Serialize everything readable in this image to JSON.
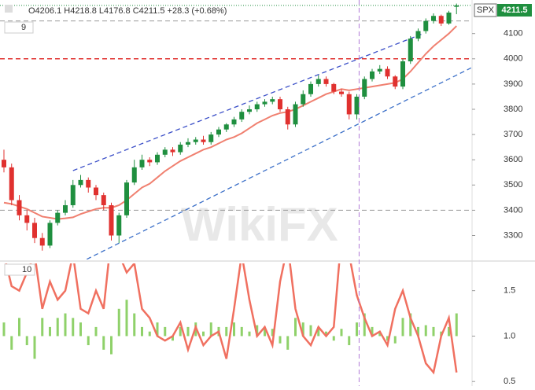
{
  "chart_data": {
    "type": "candlestick",
    "header": "O4206.1 H4218.8 L4176.8 C4211.5 +28.3 (+0.68%)",
    "symbol": "SPX",
    "watermark": "WikiFX",
    "up_color": "#1f8f3f",
    "down_color": "#e0312f",
    "open": [
      3600,
      3570,
      3440,
      3380,
      3350,
      3290,
      3260,
      3350,
      3390,
      3420,
      3500,
      3520,
      3490,
      3460,
      3420,
      3300,
      3380,
      3510,
      3570,
      3600,
      3590,
      3620,
      3640,
      3630,
      3660,
      3670,
      3680,
      3670,
      3700,
      3720,
      3740,
      3760,
      3790,
      3800,
      3820,
      3830,
      3840,
      3800,
      3740,
      3820,
      3860,
      3900,
      3920,
      3900,
      3870,
      3860,
      3780,
      3850,
      3920,
      3950,
      3960,
      3930,
      3890,
      3990,
      4080,
      4110,
      4150,
      4170,
      4140,
      4206.1
    ],
    "high": [
      3640,
      3585,
      3460,
      3400,
      3370,
      3310,
      3360,
      3400,
      3440,
      3520,
      3540,
      3530,
      3500,
      3470,
      3430,
      3390,
      3520,
      3600,
      3620,
      3610,
      3630,
      3650,
      3650,
      3670,
      3685,
      3690,
      3695,
      3710,
      3730,
      3745,
      3770,
      3800,
      3815,
      3830,
      3840,
      3850,
      3850,
      3810,
      3830,
      3875,
      3910,
      3935,
      3930,
      3905,
      3880,
      3870,
      3860,
      3930,
      3960,
      3975,
      3970,
      3935,
      4000,
      4090,
      4120,
      4160,
      4180,
      4175,
      4190,
      4218.8
    ],
    "low": [
      3550,
      3420,
      3360,
      3320,
      3270,
      3240,
      3250,
      3340,
      3380,
      3410,
      3490,
      3470,
      3440,
      3400,
      3280,
      3270,
      3370,
      3500,
      3560,
      3575,
      3580,
      3610,
      3615,
      3620,
      3650,
      3660,
      3660,
      3660,
      3690,
      3710,
      3730,
      3750,
      3780,
      3790,
      3810,
      3820,
      3790,
      3720,
      3730,
      3810,
      3850,
      3890,
      3890,
      3860,
      3850,
      3760,
      3760,
      3840,
      3910,
      3940,
      3920,
      3880,
      3880,
      3980,
      4070,
      4100,
      4140,
      4130,
      4135,
      4176.8
    ],
    "close": [
      3570,
      3440,
      3380,
      3350,
      3290,
      3260,
      3350,
      3390,
      3420,
      3500,
      3520,
      3490,
      3460,
      3420,
      3300,
      3380,
      3510,
      3570,
      3600,
      3590,
      3620,
      3640,
      3630,
      3660,
      3670,
      3680,
      3670,
      3700,
      3720,
      3740,
      3760,
      3790,
      3800,
      3820,
      3830,
      3840,
      3800,
      3740,
      3820,
      3860,
      3900,
      3920,
      3900,
      3870,
      3860,
      3780,
      3850,
      3920,
      3950,
      3960,
      3930,
      3890,
      3990,
      4080,
      4110,
      4150,
      4170,
      4140,
      4183.2,
      4211.5
    ],
    "ma": {
      "name": "9",
      "color": "#f08070",
      "values": [
        3430,
        3425,
        3415,
        3405,
        3390,
        3375,
        3370,
        3365,
        3368,
        3372,
        3385,
        3395,
        3405,
        3410,
        3410,
        3420,
        3440,
        3465,
        3490,
        3505,
        3530,
        3555,
        3575,
        3595,
        3610,
        3625,
        3640,
        3650,
        3665,
        3680,
        3690,
        3705,
        3725,
        3745,
        3760,
        3775,
        3785,
        3790,
        3800,
        3815,
        3830,
        3845,
        3860,
        3870,
        3880,
        3875,
        3880,
        3885,
        3890,
        3895,
        3900,
        3905,
        3920,
        3950,
        3985,
        4020,
        4050,
        4075,
        4100,
        4130
      ]
    },
    "ylim": [
      3205,
      4233
    ],
    "yticks": [
      3300,
      3400,
      3500,
      3600,
      3700,
      3800,
      3900,
      4000,
      4100
    ],
    "levels": [
      {
        "value": 4000,
        "color": "#e0312f"
      },
      {
        "value": 4150,
        "color": "#999999"
      },
      {
        "value": 3400,
        "color": "#999999"
      }
    ],
    "trendlines": [
      {
        "x": [
          9,
          54.4
        ],
        "y": [
          3557,
          4097
        ],
        "color": "#3b4fc8"
      },
      {
        "x": [
          10.8,
          60.9
        ],
        "y": [
          3206,
          3964
        ],
        "color": "#3b6fc8"
      }
    ],
    "marker_index": 46.3,
    "oscillator": {
      "name": "10",
      "line_color": "#f07060",
      "bar_color": "#8fd16a",
      "bars": [
        1.15,
        0.85,
        1.2,
        0.9,
        0.75,
        1.2,
        1.1,
        1.2,
        1.25,
        1.2,
        1.15,
        0.9,
        1.1,
        0.85,
        0.8,
        1.3,
        1.4,
        1.25,
        1.1,
        1.05,
        1.15,
        1.1,
        0.95,
        1.1,
        1.1,
        1.15,
        1.05,
        1.15,
        1.1,
        1.1,
        1.15,
        1.1,
        1.05,
        1.12,
        1.1,
        1.08,
        0.92,
        0.85,
        1.2,
        1.15,
        1.12,
        1.1,
        1.05,
        0.95,
        1.08,
        0.9,
        1.15,
        1.25,
        1.1,
        1.05,
        0.95,
        0.92,
        1.2,
        1.25,
        1.1,
        1.12,
        1.1,
        1.05,
        1.1,
        1.25
      ],
      "line": [
        1.9,
        1.55,
        1.5,
        1.7,
        1.9,
        1.3,
        1.6,
        1.4,
        1.5,
        1.9,
        1.3,
        1.25,
        1.5,
        1.3,
        2.1,
        1.9,
        1.7,
        1.8,
        1.3,
        1.2,
        1.0,
        0.95,
        1.0,
        1.15,
        0.85,
        1.1,
        0.9,
        1.0,
        1.05,
        0.75,
        1.3,
        1.9,
        1.4,
        1.0,
        1.1,
        0.9,
        1.6,
        2.0,
        1.3,
        1.0,
        0.9,
        1.1,
        1.0,
        1.1,
        2.1,
        1.9,
        1.45,
        1.2,
        1.0,
        1.05,
        0.9,
        1.3,
        1.5,
        1.2,
        1.0,
        0.7,
        0.6,
        1.0,
        1.2,
        0.6
      ],
      "ylim": [
        0.45,
        1.8
      ],
      "yticks": [
        0.5,
        {
          "value": 1,
          "label": "1.0"
        },
        1.5
      ]
    }
  }
}
